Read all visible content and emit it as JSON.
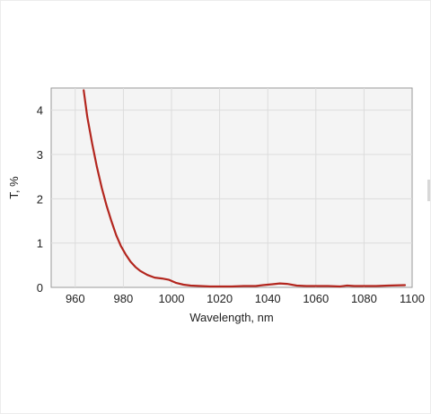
{
  "chart_data": {
    "type": "line",
    "title": "",
    "xlabel": "Wavelength, nm",
    "ylabel": "T, %",
    "xlim": [
      950,
      1100
    ],
    "ylim": [
      0,
      4.5
    ],
    "grid": true,
    "legend": "none",
    "x_ticks": [
      960,
      980,
      1000,
      1020,
      1040,
      1060,
      1080,
      1100
    ],
    "y_ticks": [
      0,
      1,
      2,
      3,
      4
    ],
    "series": [
      {
        "color": "#b3261e",
        "x": [
          963.5,
          965,
          967,
          969,
          971,
          973,
          975,
          977,
          979,
          981,
          983,
          985,
          987,
          990,
          993,
          996,
          999,
          1002,
          1005,
          1008,
          1012,
          1016,
          1020,
          1025,
          1030,
          1035,
          1038,
          1042,
          1045,
          1048,
          1052,
          1056,
          1060,
          1065,
          1070,
          1073,
          1076,
          1080,
          1085,
          1090,
          1097
        ],
        "y": [
          4.45,
          3.85,
          3.25,
          2.72,
          2.25,
          1.85,
          1.5,
          1.18,
          0.93,
          0.74,
          0.58,
          0.46,
          0.37,
          0.28,
          0.22,
          0.2,
          0.17,
          0.1,
          0.06,
          0.04,
          0.03,
          0.02,
          0.02,
          0.02,
          0.03,
          0.03,
          0.05,
          0.07,
          0.09,
          0.08,
          0.04,
          0.03,
          0.03,
          0.03,
          0.02,
          0.04,
          0.03,
          0.03,
          0.03,
          0.04,
          0.05
        ]
      }
    ]
  }
}
